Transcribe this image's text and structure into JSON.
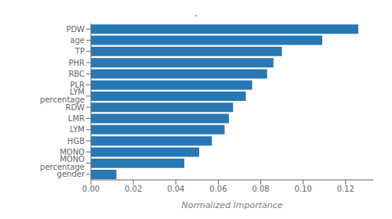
{
  "chart_data": {
    "type": "bar",
    "title": ".",
    "orientation": "horizontal",
    "categories": [
      "gender",
      "MONO percentage",
      "MONO",
      "HGB",
      "LYM",
      "LMR",
      "RDW",
      "LYM percentage",
      "PLR",
      "RBC",
      "PHR",
      "TP",
      "age",
      "PDW"
    ],
    "values": [
      0.012,
      0.044,
      0.051,
      0.057,
      0.063,
      0.065,
      0.067,
      0.073,
      0.076,
      0.083,
      0.086,
      0.09,
      0.109,
      0.126
    ],
    "color": "#2878B4",
    "xlabel": "Normalized Importance",
    "xlim": [
      0,
      0.133
    ],
    "xticks": [
      {
        "value": 0,
        "label": "0.00"
      },
      0.02,
      0.04,
      0.06,
      0.08,
      {
        "value": 0.1,
        "label": "0.10"
      },
      0.12
    ],
    "grid": false
  }
}
